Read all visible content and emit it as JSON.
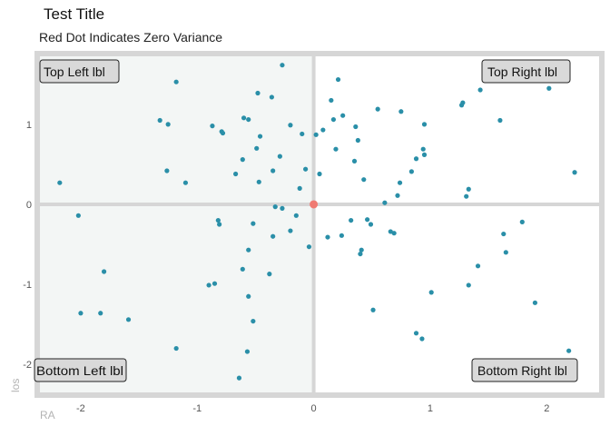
{
  "chart_data": {
    "type": "scatter",
    "title": "Test Title",
    "subtitle": "Red Dot Indicates Zero Variance",
    "xlabel": "RA",
    "ylabel": "los",
    "xlim": [
      -2.35,
      2.45
    ],
    "ylim": [
      -2.35,
      1.85
    ],
    "x_ticks": [
      -2,
      -1,
      0,
      1,
      2
    ],
    "y_ticks": [
      -2,
      -1,
      0,
      1
    ],
    "grid": false,
    "quadrant_labels": {
      "top_left": "Top Left lbl",
      "top_right": "Top Right lbl",
      "bottom_left": "Bottom Left lbl",
      "bottom_right": "Bottom Right lbl"
    },
    "colors": {
      "point": "#2a8fa8",
      "origin": "#f07a72",
      "shaded_quadrant": "#f3f6f5",
      "frame": "#d6d6d6"
    },
    "origin_point": {
      "x": 0,
      "y": 0
    },
    "points": [
      [
        -2.18,
        0.27
      ],
      [
        -2.02,
        -0.14
      ],
      [
        -2.0,
        -1.36
      ],
      [
        -1.8,
        -0.84
      ],
      [
        -1.83,
        -1.36
      ],
      [
        -1.59,
        -1.44
      ],
      [
        -1.32,
        1.05
      ],
      [
        -1.25,
        1.0
      ],
      [
        -1.26,
        0.42
      ],
      [
        -1.18,
        1.53
      ],
      [
        -1.1,
        0.27
      ],
      [
        -1.18,
        -1.8
      ],
      [
        -0.9,
        -1.01
      ],
      [
        -0.85,
        -0.99
      ],
      [
        -0.87,
        0.98
      ],
      [
        -0.82,
        -0.2
      ],
      [
        -0.81,
        -0.25
      ],
      [
        -0.79,
        0.91
      ],
      [
        -0.78,
        0.89
      ],
      [
        -0.67,
        0.38
      ],
      [
        -0.61,
        0.56
      ],
      [
        -0.6,
        1.08
      ],
      [
        -0.56,
        1.06
      ],
      [
        -0.61,
        -0.81
      ],
      [
        -0.64,
        -2.17
      ],
      [
        -0.57,
        -1.84
      ],
      [
        -0.56,
        -1.15
      ],
      [
        -0.56,
        -0.57
      ],
      [
        -0.52,
        -1.46
      ],
      [
        -0.52,
        -0.24
      ],
      [
        -0.49,
        0.7
      ],
      [
        -0.46,
        0.85
      ],
      [
        -0.47,
        0.28
      ],
      [
        -0.48,
        1.39
      ],
      [
        -0.38,
        -0.87
      ],
      [
        -0.36,
        1.34
      ],
      [
        -0.35,
        0.42
      ],
      [
        -0.35,
        -0.4
      ],
      [
        -0.33,
        -0.03
      ],
      [
        -0.27,
        -0.05
      ],
      [
        -0.29,
        0.6
      ],
      [
        -0.27,
        1.74
      ],
      [
        -0.2,
        0.99
      ],
      [
        -0.2,
        -0.33
      ],
      [
        -0.15,
        -0.14
      ],
      [
        -0.1,
        0.88
      ],
      [
        -0.12,
        0.2
      ],
      [
        -0.07,
        0.44
      ],
      [
        -0.04,
        -0.53
      ],
      [
        0.02,
        0.87
      ],
      [
        0.05,
        0.38
      ],
      [
        0.08,
        0.93
      ],
      [
        0.12,
        -0.41
      ],
      [
        0.15,
        1.3
      ],
      [
        0.17,
        1.06
      ],
      [
        0.19,
        0.69
      ],
      [
        0.21,
        1.56
      ],
      [
        0.24,
        -0.39
      ],
      [
        0.25,
        1.11
      ],
      [
        0.32,
        -0.2
      ],
      [
        0.35,
        0.54
      ],
      [
        0.36,
        0.97
      ],
      [
        0.38,
        0.8
      ],
      [
        0.4,
        -0.62
      ],
      [
        0.41,
        -0.57
      ],
      [
        0.43,
        0.31
      ],
      [
        0.46,
        -0.19
      ],
      [
        0.49,
        -0.25
      ],
      [
        0.51,
        -1.32
      ],
      [
        0.55,
        1.19
      ],
      [
        0.61,
        0.02
      ],
      [
        0.66,
        -0.34
      ],
      [
        0.69,
        -0.36
      ],
      [
        0.72,
        0.11
      ],
      [
        0.74,
        0.27
      ],
      [
        0.75,
        1.16
      ],
      [
        0.84,
        0.41
      ],
      [
        0.88,
        -1.61
      ],
      [
        0.88,
        0.57
      ],
      [
        0.93,
        -1.68
      ],
      [
        0.94,
        0.69
      ],
      [
        0.95,
        0.62
      ],
      [
        0.95,
        1.0
      ],
      [
        1.01,
        -1.1
      ],
      [
        1.27,
        1.24
      ],
      [
        1.28,
        1.27
      ],
      [
        1.31,
        0.1
      ],
      [
        1.33,
        -1.01
      ],
      [
        1.33,
        0.19
      ],
      [
        1.41,
        -0.77
      ],
      [
        1.43,
        1.43
      ],
      [
        1.6,
        1.05
      ],
      [
        1.63,
        -0.37
      ],
      [
        1.65,
        -0.6
      ],
      [
        1.79,
        -0.22
      ],
      [
        1.9,
        -1.23
      ],
      [
        2.02,
        1.45
      ],
      [
        2.19,
        -1.83
      ],
      [
        2.24,
        0.4
      ]
    ]
  }
}
